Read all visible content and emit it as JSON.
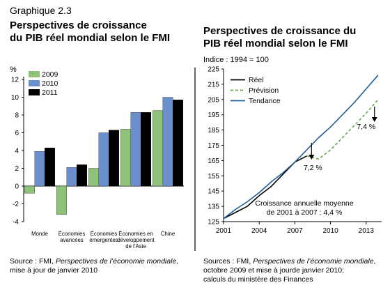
{
  "header": {
    "graphique": "Graphique 2.3"
  },
  "left_panel": {
    "title_line1": "Perspectives de croissance",
    "title_line2": "du PIB réel mondial selon le FMI",
    "unit": "%",
    "source_prefix": "Source : FMI, ",
    "source_italic": "Perspectives de l’économie mondiale",
    "source_suffix": ",",
    "source_line2": "mise à jour de janvier 2010"
  },
  "right_panel": {
    "title_line1": "Perspectives de croissance du",
    "title_line2": "PIB réel mondial selon le FMI",
    "subtitle": "Indice : 1994 = 100",
    "annotation_line1": "Croissance annuelle moyenne",
    "annotation_line2": "de 2001 à 2007 : 4,4 %",
    "label_2008": "7,2 %",
    "label_2014": "7,4 %",
    "source_line1_prefix": "Sources : FMI, ",
    "source_italic": "Perspectives de l’économie mondiale",
    "source_line1_suffix": ",",
    "source_line2": "octobre 2009 et mise à jourde janvier 2010;",
    "source_line3": "calculs du ministère des Finances"
  },
  "chart_data": [
    {
      "type": "bar",
      "title": "Perspectives de croissance du PIB réel mondial selon le FMI",
      "ylabel": "%",
      "ylim": [
        -4,
        12
      ],
      "yticks": [
        "12",
        "10",
        "8",
        "6",
        "4",
        "2",
        "0",
        "-2",
        "-4"
      ],
      "categories": [
        "Monde",
        "Économies avancées",
        "Économies émergentes",
        "Économies en développement de l’Asie",
        "Chine"
      ],
      "category_lines": [
        [
          "Monde"
        ],
        [
          "Économies",
          "avancées"
        ],
        [
          "Économies",
          "émergentes"
        ],
        [
          "Économies en",
          "développement",
          "de l’Asie"
        ],
        [
          "Chine"
        ]
      ],
      "series": [
        {
          "name": "2009",
          "color": "#8dc278",
          "values": [
            -0.8,
            -3.2,
            2.0,
            6.4,
            8.5
          ]
        },
        {
          "name": "2010",
          "color": "#6b8fcd",
          "values": [
            3.9,
            2.1,
            6.0,
            8.3,
            10.0
          ]
        },
        {
          "name": "2011",
          "color": "#000000",
          "values": [
            4.3,
            2.4,
            6.3,
            8.3,
            9.7
          ]
        }
      ],
      "legend_position": "top-left",
      "grid": false
    },
    {
      "type": "line",
      "title": "Perspectives de croissance du PIB réel mondial selon le FMI",
      "subtitle": "Indice : 1994 = 100",
      "ylim": [
        125,
        225
      ],
      "yticks": [
        "225",
        "215",
        "205",
        "195",
        "185",
        "175",
        "165",
        "155",
        "145",
        "135",
        "125"
      ],
      "xlim": [
        2001,
        2014.3
      ],
      "xticks": [
        "2001",
        "2004",
        "2007",
        "2010",
        "2013"
      ],
      "series": [
        {
          "name": "Réel",
          "color": "#000000",
          "style": "solid",
          "x": [
            2001,
            2002,
            2003,
            2004,
            2005,
            2006,
            2007,
            2008
          ],
          "y": [
            127,
            131,
            135,
            142,
            148,
            156,
            164,
            168
          ]
        },
        {
          "name": "Prévision",
          "color": "#6aa84f",
          "style": "dashed",
          "x": [
            2008,
            2009,
            2010,
            2011,
            2012,
            2013,
            2014
          ],
          "y": [
            168,
            166,
            172,
            180,
            188,
            196,
            205
          ]
        },
        {
          "name": "Tendance",
          "color": "#1f5f99",
          "style": "solid",
          "x": [
            2001,
            2002,
            2003,
            2004,
            2005,
            2006,
            2007,
            2008,
            2009,
            2010,
            2011,
            2012,
            2013,
            2014
          ],
          "y": [
            127,
            133,
            138,
            144,
            151,
            157,
            164,
            172,
            180,
            187,
            195,
            203,
            212,
            221
          ]
        }
      ],
      "legend_position": "top-left",
      "grid": false
    }
  ]
}
